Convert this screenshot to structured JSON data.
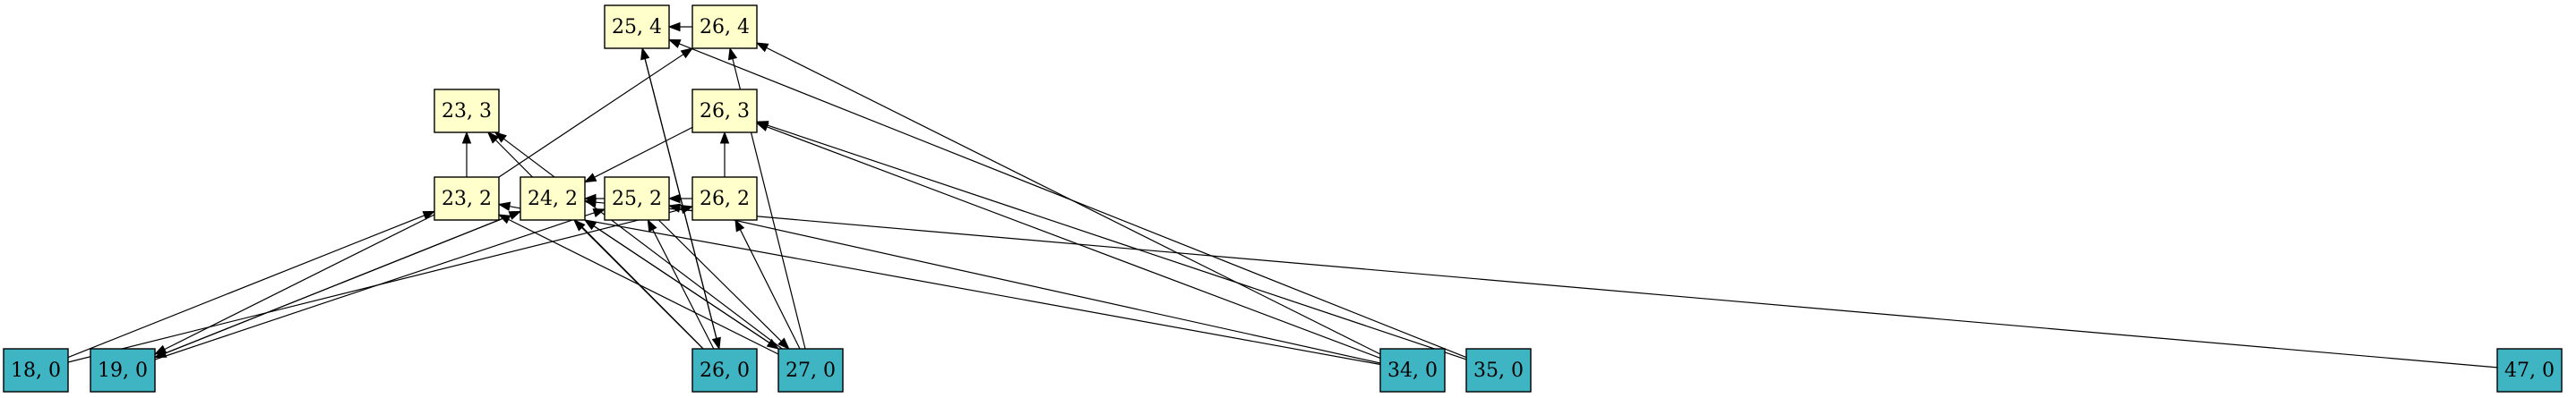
{
  "colors": {
    "upper_fill": "#ffffcc",
    "lower_fill": "#3fb4c3",
    "stroke": "#000000"
  },
  "nodes": [
    {
      "id": "n25_4",
      "label": "25, 4",
      "kind": "upper"
    },
    {
      "id": "n26_4",
      "label": "26, 4",
      "kind": "upper"
    },
    {
      "id": "n23_3",
      "label": "23, 3",
      "kind": "upper"
    },
    {
      "id": "n26_3",
      "label": "26, 3",
      "kind": "upper"
    },
    {
      "id": "n23_2",
      "label": "23, 2",
      "kind": "upper"
    },
    {
      "id": "n24_2",
      "label": "24, 2",
      "kind": "upper"
    },
    {
      "id": "n25_2",
      "label": "25, 2",
      "kind": "upper"
    },
    {
      "id": "n26_2",
      "label": "26, 2",
      "kind": "upper"
    },
    {
      "id": "n18_0",
      "label": "18, 0",
      "kind": "lower"
    },
    {
      "id": "n19_0",
      "label": "19, 0",
      "kind": "lower"
    },
    {
      "id": "n26_0",
      "label": "26, 0",
      "kind": "lower"
    },
    {
      "id": "n27_0",
      "label": "27, 0",
      "kind": "lower"
    },
    {
      "id": "n34_0",
      "label": "34, 0",
      "kind": "lower"
    },
    {
      "id": "n35_0",
      "label": "35, 0",
      "kind": "lower"
    },
    {
      "id": "n47_0",
      "label": "47, 0",
      "kind": "lower"
    }
  ],
  "edges": [
    {
      "from": "n26_4",
      "to": "n25_4"
    },
    {
      "from": "n23_2",
      "to": "n23_3"
    },
    {
      "from": "n23_2",
      "to": "n26_4"
    },
    {
      "from": "n26_2",
      "to": "n26_3"
    },
    {
      "from": "n26_3",
      "to": "n24_2"
    },
    {
      "from": "n25_2",
      "to": "n24_2"
    },
    {
      "from": "n26_2",
      "to": "n25_2"
    },
    {
      "from": "n18_0",
      "to": "n23_2"
    },
    {
      "from": "n18_0",
      "to": "n26_2"
    },
    {
      "from": "n23_2",
      "to": "n19_0"
    },
    {
      "from": "n19_0",
      "to": "n24_2"
    },
    {
      "from": "n19_0",
      "to": "n25_2"
    },
    {
      "from": "n24_2",
      "to": "n19_0"
    },
    {
      "from": "n26_0",
      "to": "n25_4"
    },
    {
      "from": "n26_0",
      "to": "n23_3"
    },
    {
      "from": "n26_0",
      "to": "n24_2"
    },
    {
      "from": "n26_0",
      "to": "n25_2"
    },
    {
      "from": "n25_4",
      "to": "n26_0"
    },
    {
      "from": "n27_0",
      "to": "n26_4"
    },
    {
      "from": "n27_0",
      "to": "n23_3"
    },
    {
      "from": "n27_0",
      "to": "n23_2"
    },
    {
      "from": "n27_0",
      "to": "n24_2"
    },
    {
      "from": "n27_0",
      "to": "n26_2"
    },
    {
      "from": "n24_2",
      "to": "n27_0"
    },
    {
      "from": "n25_2",
      "to": "n27_0"
    },
    {
      "from": "n34_0",
      "to": "n26_4"
    },
    {
      "from": "n34_0",
      "to": "n26_3"
    },
    {
      "from": "n34_0",
      "to": "n25_2"
    },
    {
      "from": "n34_0",
      "to": "n23_2"
    },
    {
      "from": "n35_0",
      "to": "n25_4"
    },
    {
      "from": "n35_0",
      "to": "n26_3"
    },
    {
      "from": "n47_0",
      "to": "n24_2"
    }
  ]
}
